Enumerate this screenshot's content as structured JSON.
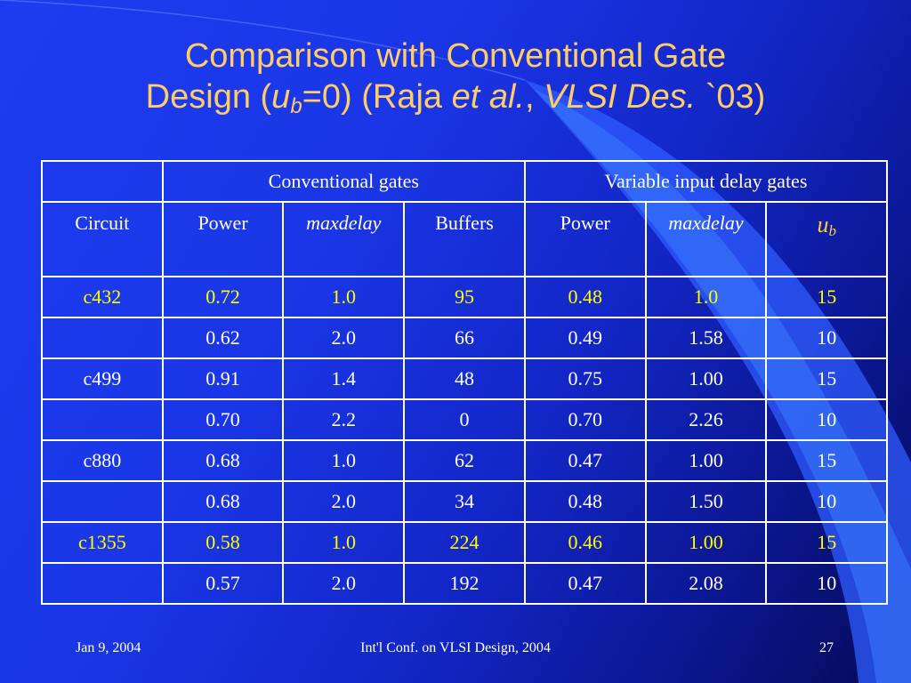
{
  "title": {
    "line1": "Comparison with Conventional Gate",
    "design": "Design (",
    "u": "u",
    "b": "b",
    "eq": "=0)",
    "raja": " (Raja ",
    "etal": "et al.",
    "comma": ", ",
    "vlsi": "VLSI Des.",
    "year": " `03)"
  },
  "table": {
    "group_headers": [
      "Conventional gates",
      "Variable input delay gates"
    ],
    "col_headers": [
      "Circuit",
      "Power",
      "maxdelay",
      "Buffers",
      "Power",
      "maxdelay"
    ],
    "ub_header": {
      "u": "u",
      "b": "b"
    },
    "rows": [
      {
        "circuit": "c432",
        "cells": [
          "0.72",
          "1.0",
          "95",
          "0.48",
          "1.0",
          "15"
        ],
        "highlight": true
      },
      {
        "circuit": "",
        "cells": [
          "0.62",
          "2.0",
          "66",
          "0.49",
          "1.58",
          "10"
        ],
        "highlight": false
      },
      {
        "circuit": "c499",
        "cells": [
          "0.91",
          "1.4",
          "48",
          "0.75",
          "1.00",
          "15"
        ],
        "highlight": false
      },
      {
        "circuit": "",
        "cells": [
          "0.70",
          "2.2",
          "0",
          "0.70",
          "2.26",
          "10"
        ],
        "highlight": false
      },
      {
        "circuit": "c880",
        "cells": [
          "0.68",
          "1.0",
          "62",
          "0.47",
          "1.00",
          "15"
        ],
        "highlight": false
      },
      {
        "circuit": "",
        "cells": [
          "0.68",
          "2.0",
          "34",
          "0.48",
          "1.50",
          "10"
        ],
        "highlight": false
      },
      {
        "circuit": "c1355",
        "cells": [
          "0.58",
          "1.0",
          "224",
          "0.46",
          "1.00",
          "15"
        ],
        "highlight": true
      },
      {
        "circuit": "",
        "cells": [
          "0.57",
          "2.0",
          "192",
          "0.47",
          "2.08",
          "10"
        ],
        "highlight": false
      }
    ]
  },
  "footer": {
    "date": "Jan 9, 2004",
    "conference": "Int'l Conf. on VLSI Design, 2004",
    "page": "27"
  },
  "colors": {
    "title": "#ffcc66",
    "highlight": "#ffff00",
    "ub": "#ffcc33",
    "background": "#1a36e6"
  }
}
